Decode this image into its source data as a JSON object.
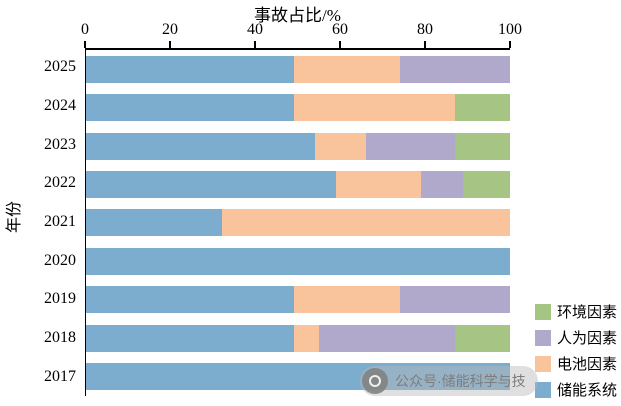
{
  "chart_data": {
    "type": "bar",
    "orientation": "horizontal",
    "title": "事故占比/%",
    "ylabel": "年份",
    "xlim": [
      0,
      100
    ],
    "x_ticks": [
      0,
      20,
      40,
      60,
      80,
      100
    ],
    "categories": [
      "2025",
      "2024",
      "2023",
      "2022",
      "2021",
      "2020",
      "2019",
      "2018",
      "2017"
    ],
    "series": [
      {
        "name": "储能系统",
        "color": "#7cadce",
        "values": [
          49,
          49,
          54,
          59,
          32,
          100,
          49,
          49,
          100
        ]
      },
      {
        "name": "电池因素",
        "color": "#f9c49b",
        "values": [
          25,
          38,
          12,
          20,
          68,
          0,
          25,
          6,
          0
        ]
      },
      {
        "name": "人为因素",
        "color": "#b1a9cc",
        "values": [
          26,
          0,
          21,
          10,
          0,
          0,
          26,
          32,
          0
        ]
      },
      {
        "name": "环境因素",
        "color": "#a6c584",
        "values": [
          0,
          13,
          13,
          11,
          0,
          0,
          0,
          13,
          0
        ]
      }
    ],
    "legend": [
      "环境因素",
      "人为因素",
      "电池因素",
      "储能系统"
    ],
    "legend_position": "lower right",
    "grid": false
  },
  "watermark": {
    "text": "公众号·储能科学与技"
  }
}
